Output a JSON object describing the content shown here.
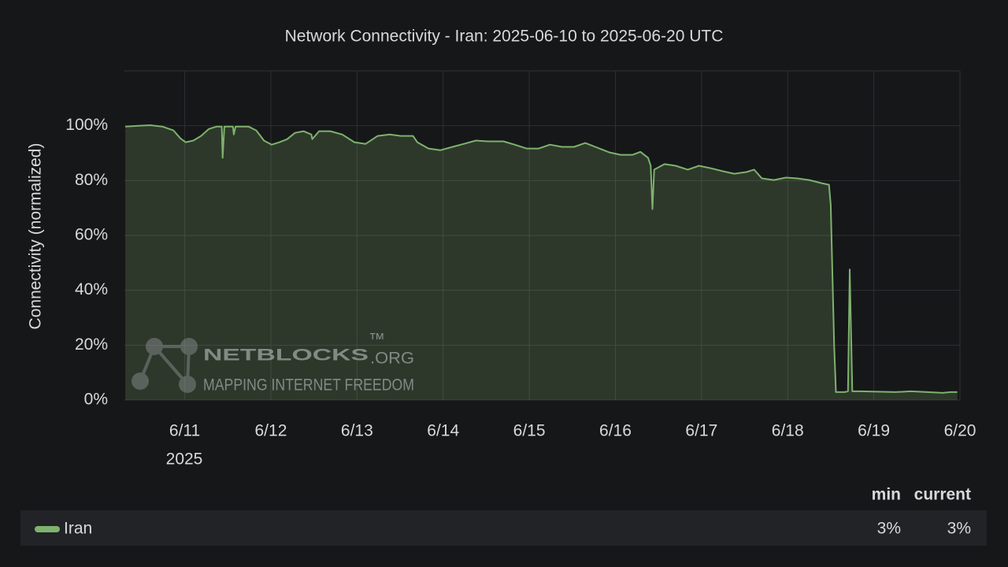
{
  "chart_data": {
    "type": "line",
    "title": "Network Connectivity - Iran: 2025-06-10 to 2025-06-20 UTC",
    "y_label": "Connectivity (normalized)",
    "x_year_label": "2025",
    "xlim": [
      10.3,
      20.0
    ],
    "xticks": [
      {
        "value": 11,
        "label": "6/11"
      },
      {
        "value": 12,
        "label": "6/12"
      },
      {
        "value": 13,
        "label": "6/13"
      },
      {
        "value": 14,
        "label": "6/14"
      },
      {
        "value": 15,
        "label": "6/15"
      },
      {
        "value": 16,
        "label": "6/16"
      },
      {
        "value": 17,
        "label": "6/17"
      },
      {
        "value": 18,
        "label": "6/18"
      },
      {
        "value": 19,
        "label": "6/19"
      },
      {
        "value": 20,
        "label": "6/20"
      }
    ],
    "ylim": [
      0,
      120
    ],
    "yticks": [
      {
        "value": 0,
        "label": "0%"
      },
      {
        "value": 20,
        "label": "20%"
      },
      {
        "value": 40,
        "label": "40%"
      },
      {
        "value": 60,
        "label": "60%"
      },
      {
        "value": 80,
        "label": "80%"
      },
      {
        "value": 100,
        "label": "100%"
      }
    ],
    "grid": true,
    "legend_columns": [
      "min",
      "current"
    ],
    "series": [
      {
        "name": "Iran",
        "color": "#7eb26d",
        "x": [
          10.31,
          10.46,
          10.6,
          10.74,
          10.87,
          10.95,
          11.01,
          11.1,
          11.19,
          11.28,
          11.37,
          11.43,
          11.44,
          11.46,
          11.56,
          11.57,
          11.59,
          11.74,
          11.83,
          11.92,
          12.01,
          12.1,
          12.19,
          12.28,
          12.38,
          12.47,
          12.48,
          12.56,
          12.69,
          12.83,
          12.97,
          13.1,
          13.24,
          13.38,
          13.51,
          13.65,
          13.7,
          13.83,
          13.97,
          14.11,
          14.24,
          14.38,
          14.52,
          14.7,
          14.83,
          14.97,
          15.11,
          15.24,
          15.38,
          15.52,
          15.65,
          15.79,
          15.93,
          16.06,
          16.2,
          16.29,
          16.38,
          16.41,
          16.43,
          16.45,
          16.57,
          16.7,
          16.84,
          16.97,
          17.11,
          17.25,
          17.38,
          17.52,
          17.61,
          17.7,
          17.84,
          17.98,
          18.11,
          18.25,
          18.39,
          18.48,
          18.5,
          18.54,
          18.56,
          18.66,
          18.7,
          18.72,
          18.75,
          18.84,
          19.25,
          19.43,
          19.62,
          19.8,
          19.89,
          19.97
        ],
        "values": [
          99.7,
          100,
          100.2,
          99.7,
          98.3,
          95.4,
          94.0,
          94.6,
          96.3,
          98.8,
          99.7,
          99.7,
          88.3,
          99.7,
          99.7,
          96.8,
          99.7,
          99.7,
          98.3,
          94.6,
          93.1,
          94.0,
          95.1,
          97.4,
          98.0,
          96.8,
          95.1,
          98.0,
          98.0,
          96.8,
          94.0,
          93.4,
          96.3,
          96.8,
          96.3,
          96.3,
          94.0,
          91.7,
          91.1,
          92.3,
          93.4,
          94.6,
          94.3,
          94.3,
          93.1,
          91.7,
          91.7,
          93.1,
          92.3,
          92.3,
          93.7,
          92.0,
          90.3,
          89.4,
          89.4,
          90.5,
          88.3,
          85.4,
          69.6,
          84.0,
          86.0,
          85.4,
          84.0,
          85.4,
          84.5,
          83.4,
          82.5,
          83.1,
          84.0,
          80.8,
          80.2,
          81.1,
          80.8,
          80.2,
          79.1,
          78.5,
          71.1,
          19.5,
          2.9,
          2.9,
          3.2,
          47.6,
          3.2,
          3.2,
          2.9,
          3.2,
          2.9,
          2.6,
          2.9,
          2.9
        ],
        "legend_values": [
          3,
          3
        ],
        "legend_value_labels": [
          "3%",
          "3%"
        ]
      }
    ],
    "watermark": {
      "name": "NETBLOCKS",
      "tm": "™",
      "suffix": ".ORG",
      "tagline": "MAPPING INTERNET FREEDOM"
    }
  }
}
